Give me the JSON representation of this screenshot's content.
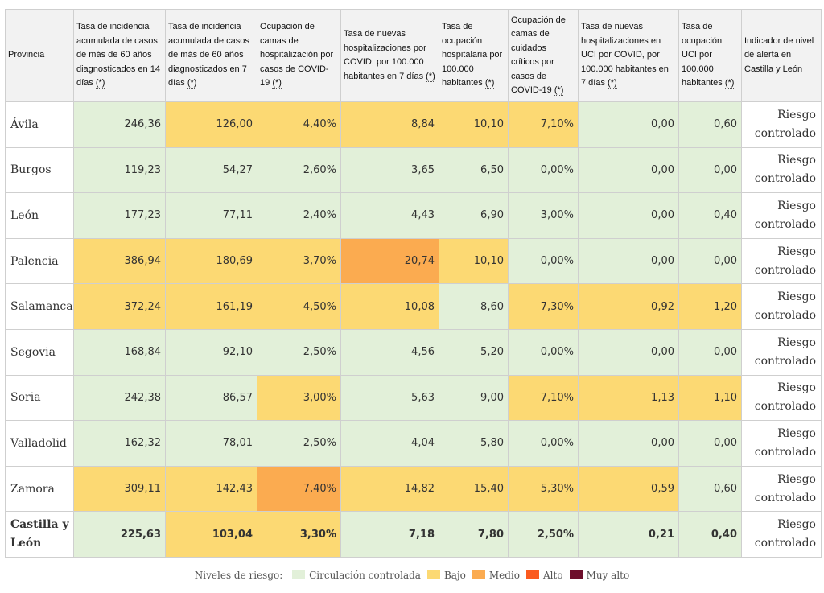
{
  "table": {
    "headers": [
      {
        "text": "Provincia",
        "ast": false
      },
      {
        "text": "Tasa de incidencia acumulada de casos de más de 60 años diagnosticados en 14 días",
        "ast": true
      },
      {
        "text": "Tasa de incidencia acumulada de casos de más de 60 años diagnosticados en 7 días",
        "ast": true
      },
      {
        "text": "Ocupación de camas de hospitalización por casos de COVID-19",
        "ast": true
      },
      {
        "text": "Tasa de nuevas hospitalizaciones por COVID, por 100.000 habitantes en 7 días",
        "ast": true
      },
      {
        "text": "Tasa de ocupación hospitalaria por 100.000 habitantes",
        "ast": true
      },
      {
        "text": "Ocupación de camas de cuidados críticos por casos de COVID-19",
        "ast": true
      },
      {
        "text": "Tasa de nuevas hospitalizaciones en UCI por COVID, por 100.000 habitantes en 7 días",
        "ast": true
      },
      {
        "text": "Tasa de ocupación UCI por 100.000 habitantes",
        "ast": true
      },
      {
        "text": "Indicador de nivel de alerta en Castilla y León",
        "ast": false
      }
    ],
    "asterisk": "(*)",
    "rows": [
      {
        "province": "Ávila",
        "alert": "Riesgo controlado",
        "cells": [
          {
            "v": "246,36",
            "l": "c"
          },
          {
            "v": "126,00",
            "l": "b"
          },
          {
            "v": "4,40%",
            "l": "b"
          },
          {
            "v": "8,84",
            "l": "b"
          },
          {
            "v": "10,10",
            "l": "b"
          },
          {
            "v": "7,10%",
            "l": "b"
          },
          {
            "v": "0,00",
            "l": "c"
          },
          {
            "v": "0,60",
            "l": "c"
          }
        ]
      },
      {
        "province": "Burgos",
        "alert": "Riesgo controlado",
        "cells": [
          {
            "v": "119,23",
            "l": "c"
          },
          {
            "v": "54,27",
            "l": "c"
          },
          {
            "v": "2,60%",
            "l": "c"
          },
          {
            "v": "3,65",
            "l": "c"
          },
          {
            "v": "6,50",
            "l": "c"
          },
          {
            "v": "0,00%",
            "l": "c"
          },
          {
            "v": "0,00",
            "l": "c"
          },
          {
            "v": "0,00",
            "l": "c"
          }
        ]
      },
      {
        "province": "León",
        "alert": "Riesgo controlado",
        "cells": [
          {
            "v": "177,23",
            "l": "c"
          },
          {
            "v": "77,11",
            "l": "c"
          },
          {
            "v": "2,40%",
            "l": "c"
          },
          {
            "v": "4,43",
            "l": "c"
          },
          {
            "v": "6,90",
            "l": "c"
          },
          {
            "v": "3,00%",
            "l": "c"
          },
          {
            "v": "0,00",
            "l": "c"
          },
          {
            "v": "0,40",
            "l": "c"
          }
        ]
      },
      {
        "province": "Palencia",
        "alert": "Riesgo controlado",
        "cells": [
          {
            "v": "386,94",
            "l": "b"
          },
          {
            "v": "180,69",
            "l": "b"
          },
          {
            "v": "3,70%",
            "l": "b"
          },
          {
            "v": "20,74",
            "l": "m"
          },
          {
            "v": "10,10",
            "l": "b"
          },
          {
            "v": "0,00%",
            "l": "c"
          },
          {
            "v": "0,00",
            "l": "c"
          },
          {
            "v": "0,00",
            "l": "c"
          }
        ]
      },
      {
        "province": "Salamanca",
        "alert": "Riesgo controlado",
        "cells": [
          {
            "v": "372,24",
            "l": "b"
          },
          {
            "v": "161,19",
            "l": "b"
          },
          {
            "v": "4,50%",
            "l": "b"
          },
          {
            "v": "10,08",
            "l": "b"
          },
          {
            "v": "8,60",
            "l": "c"
          },
          {
            "v": "7,30%",
            "l": "b"
          },
          {
            "v": "0,92",
            "l": "b"
          },
          {
            "v": "1,20",
            "l": "b"
          }
        ]
      },
      {
        "province": "Segovia",
        "alert": "Riesgo controlado",
        "cells": [
          {
            "v": "168,84",
            "l": "c"
          },
          {
            "v": "92,10",
            "l": "c"
          },
          {
            "v": "2,50%",
            "l": "c"
          },
          {
            "v": "4,56",
            "l": "c"
          },
          {
            "v": "5,20",
            "l": "c"
          },
          {
            "v": "0,00%",
            "l": "c"
          },
          {
            "v": "0,00",
            "l": "c"
          },
          {
            "v": "0,00",
            "l": "c"
          }
        ]
      },
      {
        "province": "Soria",
        "alert": "Riesgo controlado",
        "cells": [
          {
            "v": "242,38",
            "l": "c"
          },
          {
            "v": "86,57",
            "l": "c"
          },
          {
            "v": "3,00%",
            "l": "b"
          },
          {
            "v": "5,63",
            "l": "c"
          },
          {
            "v": "9,00",
            "l": "c"
          },
          {
            "v": "7,10%",
            "l": "b"
          },
          {
            "v": "1,13",
            "l": "b"
          },
          {
            "v": "1,10",
            "l": "b"
          }
        ]
      },
      {
        "province": "Valladolid",
        "alert": "Riesgo controlado",
        "cells": [
          {
            "v": "162,32",
            "l": "c"
          },
          {
            "v": "78,01",
            "l": "c"
          },
          {
            "v": "2,50%",
            "l": "c"
          },
          {
            "v": "4,04",
            "l": "c"
          },
          {
            "v": "5,80",
            "l": "c"
          },
          {
            "v": "0,00%",
            "l": "c"
          },
          {
            "v": "0,00",
            "l": "c"
          },
          {
            "v": "0,00",
            "l": "c"
          }
        ]
      },
      {
        "province": "Zamora",
        "alert": "Riesgo controlado",
        "cells": [
          {
            "v": "309,11",
            "l": "b"
          },
          {
            "v": "142,43",
            "l": "b"
          },
          {
            "v": "7,40%",
            "l": "m"
          },
          {
            "v": "14,82",
            "l": "b"
          },
          {
            "v": "15,40",
            "l": "b"
          },
          {
            "v": "5,30%",
            "l": "b"
          },
          {
            "v": "0,59",
            "l": "b"
          },
          {
            "v": "0,60",
            "l": "c"
          }
        ]
      },
      {
        "province": "Castilla y León",
        "alert": "Riesgo controlado",
        "total": true,
        "cells": [
          {
            "v": "225,63",
            "l": "c"
          },
          {
            "v": "103,04",
            "l": "b"
          },
          {
            "v": "3,30%",
            "l": "b"
          },
          {
            "v": "7,18",
            "l": "c"
          },
          {
            "v": "7,80",
            "l": "c"
          },
          {
            "v": "2,50%",
            "l": "c"
          },
          {
            "v": "0,21",
            "l": "c"
          },
          {
            "v": "0,40",
            "l": "c"
          }
        ]
      }
    ]
  },
  "legend": {
    "title": "Niveles de riesgo:",
    "items": [
      {
        "label": "Circulación controlada",
        "level": "c",
        "color": "#e2f0d9"
      },
      {
        "label": "Bajo",
        "level": "b",
        "color": "#fcd973"
      },
      {
        "label": "Medio",
        "level": "m",
        "color": "#fbab50"
      },
      {
        "label": "Alto",
        "level": "a",
        "color": "#fb5a1e"
      },
      {
        "label": "Muy alto",
        "level": "x",
        "color": "#6d0d2b"
      }
    ]
  }
}
